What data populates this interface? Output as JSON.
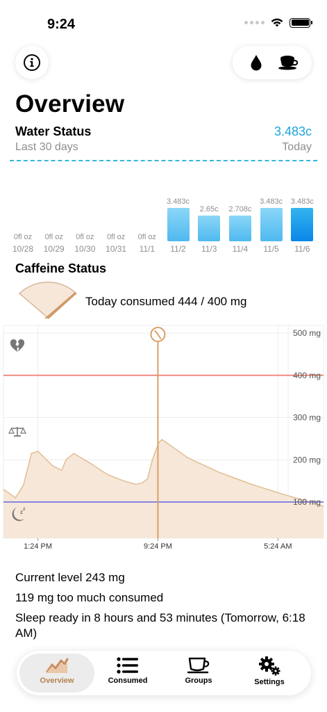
{
  "status_bar": {
    "time": "9:24"
  },
  "header": {
    "title": "Overview"
  },
  "water": {
    "title": "Water Status",
    "subtitle": "Last 30 days",
    "current_value": "3.483c",
    "current_label": "Today",
    "accent": "#1aa5d8",
    "bars": [
      {
        "date": "10/28",
        "label": "0fl oz",
        "value": 0
      },
      {
        "date": "10/29",
        "label": "0fl oz",
        "value": 0
      },
      {
        "date": "10/30",
        "label": "0fl oz",
        "value": 0
      },
      {
        "date": "10/31",
        "label": "0fl oz",
        "value": 0
      },
      {
        "date": "11/1",
        "label": "0fl oz",
        "value": 0
      },
      {
        "date": "11/2",
        "label": "3.483c",
        "value": 3.483
      },
      {
        "date": "11/3",
        "label": "2.65c",
        "value": 2.65
      },
      {
        "date": "11/4",
        "label": "2.708c",
        "value": 2.708
      },
      {
        "date": "11/5",
        "label": "3.483c",
        "value": 3.483
      },
      {
        "date": "11/6",
        "label": "3.483c",
        "value": 3.483
      }
    ]
  },
  "caffeine": {
    "title": "Caffeine Status",
    "consumed_text": "Today consumed 444 / 400 mg",
    "gauge_fraction": 1.11,
    "chart_data": {
      "type": "area",
      "y_ticks": [
        "500 mg",
        "400 mg",
        "300 mg",
        "200 mg",
        "100 mg"
      ],
      "x_ticks": [
        "1:24 PM",
        "9:24 PM",
        "5:24 AM"
      ],
      "ylim": [
        0,
        500
      ],
      "limit_line": 400,
      "sleep_line": 100,
      "now_index": 19,
      "points": [
        {
          "t": 0,
          "mg": 130
        },
        {
          "t": 1.5,
          "mg": 110
        },
        {
          "t": 2.5,
          "mg": 140
        },
        {
          "t": 3.5,
          "mg": 215
        },
        {
          "t": 4.3,
          "mg": 220
        },
        {
          "t": 6.2,
          "mg": 185
        },
        {
          "t": 7.3,
          "mg": 175
        },
        {
          "t": 7.8,
          "mg": 200
        },
        {
          "t": 8.8,
          "mg": 215
        },
        {
          "t": 11,
          "mg": 190
        },
        {
          "t": 13,
          "mg": 165
        },
        {
          "t": 15,
          "mg": 150
        },
        {
          "t": 16.5,
          "mg": 142
        },
        {
          "t": 17.3,
          "mg": 145
        },
        {
          "t": 18,
          "mg": 155
        },
        {
          "t": 18.6,
          "mg": 200
        },
        {
          "t": 19.4,
          "mg": 240
        },
        {
          "t": 19.8,
          "mg": 248
        },
        {
          "t": 20.8,
          "mg": 235
        },
        {
          "t": 23,
          "mg": 205
        },
        {
          "t": 27,
          "mg": 170
        },
        {
          "t": 31,
          "mg": 142
        },
        {
          "t": 35,
          "mg": 118
        },
        {
          "t": 38,
          "mg": 102
        },
        {
          "t": 40,
          "mg": 90
        }
      ],
      "x_tick_t": [
        4.3,
        19.3,
        34.3
      ],
      "t_max": 40,
      "colors": {
        "fill": "#f6e7d8",
        "stroke": "#e2bd95",
        "limit": "#f08a80",
        "sleep": "#8a84e2",
        "now": "#d9a066"
      }
    }
  },
  "stats": {
    "current_level": "Current level 243 mg",
    "too_much": "119 mg too much consumed",
    "sleep_ready": "Sleep ready in 8 hours and 53 minutes (Tomorrow, 6:18 AM)"
  },
  "tabs": [
    {
      "label": "Overview",
      "icon": "chart-line-icon",
      "active": true
    },
    {
      "label": "Consumed",
      "icon": "list-icon",
      "active": false
    },
    {
      "label": "Groups",
      "icon": "cup-icon",
      "active": false
    },
    {
      "label": "Settings",
      "icon": "gears-icon",
      "active": false
    }
  ]
}
